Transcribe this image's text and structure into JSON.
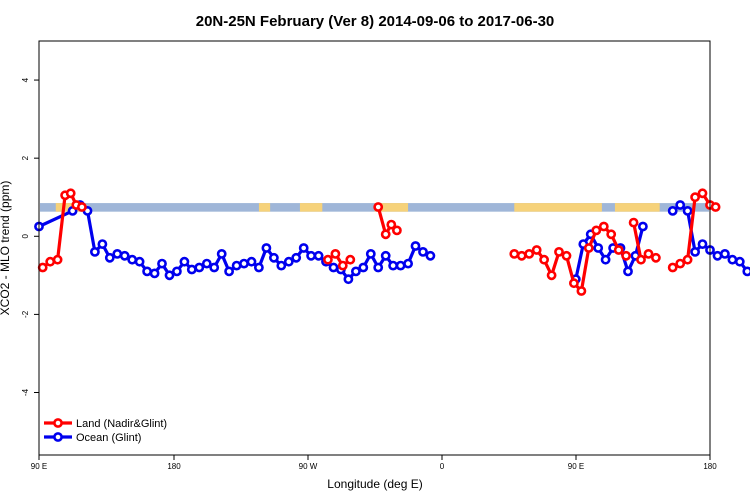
{
  "chart_data": {
    "type": "line",
    "title": "20N-25N February (Ver 8)   2014-09-06 to 2017-06-30",
    "xlabel": "Longitude (deg E)",
    "ylabel": "XCO2 - MLO trend (ppm)",
    "xlim": [
      90,
      450
    ],
    "ylim": [
      -5.6,
      5.0
    ],
    "x_ticks": [
      {
        "value": 90,
        "label": "90 E"
      },
      {
        "value": 180,
        "label": "180"
      },
      {
        "value": 270,
        "label": "90 W"
      },
      {
        "value": 360,
        "label": "0"
      },
      {
        "value": 450,
        "label": "90 E"
      },
      {
        "value": 540,
        "label": "180"
      }
    ],
    "y_ticks": [
      {
        "value": -4,
        "label": "-4"
      },
      {
        "value": -2,
        "label": "-2"
      },
      {
        "value": 0,
        "label": "0"
      },
      {
        "value": 2,
        "label": "2"
      },
      {
        "value": 4,
        "label": "4"
      }
    ],
    "x_tick_positions_note": "",
    "mask_band": {
      "y_range": [
        0.63,
        0.85
      ],
      "ocean_color": "#9fb6d8",
      "land_color": "#f6d27a",
      "land_segments": [
        [
          99,
          112
        ],
        [
          208,
          214
        ],
        [
          230,
          242
        ],
        [
          270,
          288
        ],
        [
          345,
          392
        ],
        [
          399,
          423
        ]
      ]
    },
    "legend_position": "bottom-left",
    "series": [
      {
        "name": "Land (Nadir&Glint)",
        "color": "#ff0000",
        "segments": [
          [
            [
              92,
              -0.8
            ],
            [
              96,
              -0.65
            ],
            [
              100,
              -0.6
            ],
            [
              104,
              1.05
            ],
            [
              107,
              1.1
            ],
            [
              110,
              0.8
            ],
            [
              113,
              0.75
            ]
          ],
          [
            [
              245,
              -0.6
            ],
            [
              249,
              -0.45
            ],
            [
              253,
              -0.75
            ],
            [
              257,
              -0.6
            ]
          ],
          [
            [
              272,
              0.75
            ],
            [
              276,
              0.05
            ],
            [
              279,
              0.3
            ],
            [
              282,
              0.15
            ]
          ],
          [
            [
              345,
              -0.45
            ],
            [
              349,
              -0.5
            ],
            [
              353,
              -0.45
            ],
            [
              357,
              -0.35
            ],
            [
              361,
              -0.6
            ],
            [
              365,
              -1.0
            ],
            [
              369,
              -0.4
            ],
            [
              373,
              -0.5
            ],
            [
              377,
              -1.2
            ],
            [
              381,
              -1.4
            ],
            [
              385,
              -0.3
            ],
            [
              389,
              0.15
            ],
            [
              393,
              0.25
            ],
            [
              397,
              0.05
            ],
            [
              401,
              -0.35
            ],
            [
              405,
              -0.5
            ]
          ],
          [
            [
              409,
              0.35
            ],
            [
              413,
              -0.6
            ],
            [
              417,
              -0.45
            ],
            [
              421,
              -0.55
            ]
          ],
          [
            [
              430,
              -0.8
            ],
            [
              434,
              -0.7
            ],
            [
              438,
              -0.6
            ],
            [
              442,
              1.0
            ],
            [
              446,
              1.1
            ],
            [
              450,
              0.8
            ],
            [
              453,
              0.75
            ]
          ]
        ]
      },
      {
        "name": "Ocean (Glint)",
        "color": "#0000ee",
        "segments": [
          [
            [
              90,
              0.25
            ],
            [
              108,
              0.65
            ],
            [
              112,
              0.8
            ],
            [
              116,
              0.65
            ],
            [
              120,
              -0.4
            ],
            [
              124,
              -0.2
            ],
            [
              128,
              -0.55
            ],
            [
              132,
              -0.45
            ],
            [
              136,
              -0.5
            ],
            [
              140,
              -0.6
            ],
            [
              144,
              -0.65
            ],
            [
              148,
              -0.9
            ],
            [
              152,
              -0.95
            ],
            [
              156,
              -0.7
            ],
            [
              160,
              -1.0
            ],
            [
              164,
              -0.9
            ],
            [
              168,
              -0.65
            ],
            [
              172,
              -0.85
            ],
            [
              176,
              -0.8
            ],
            [
              180,
              -0.7
            ],
            [
              184,
              -0.8
            ],
            [
              188,
              -0.45
            ],
            [
              192,
              -0.9
            ],
            [
              196,
              -0.75
            ],
            [
              200,
              -0.7
            ],
            [
              204,
              -0.65
            ],
            [
              208,
              -0.8
            ],
            [
              212,
              -0.3
            ],
            [
              216,
              -0.55
            ],
            [
              220,
              -0.75
            ],
            [
              224,
              -0.65
            ],
            [
              228,
              -0.55
            ],
            [
              232,
              -0.3
            ],
            [
              236,
              -0.5
            ],
            [
              240,
              -0.5
            ],
            [
              244,
              -0.65
            ],
            [
              248,
              -0.8
            ],
            [
              252,
              -0.85
            ],
            [
              256,
              -1.1
            ],
            [
              260,
              -0.9
            ],
            [
              264,
              -0.8
            ],
            [
              268,
              -0.45
            ],
            [
              272,
              -0.8
            ],
            [
              276,
              -0.5
            ],
            [
              280,
              -0.75
            ],
            [
              284,
              -0.75
            ],
            [
              288,
              -0.7
            ],
            [
              292,
              -0.25
            ],
            [
              296,
              -0.4
            ],
            [
              300,
              -0.5
            ]
          ],
          [
            [
              378,
              -1.1
            ],
            [
              382,
              -0.2
            ],
            [
              386,
              0.05
            ],
            [
              390,
              -0.3
            ],
            [
              394,
              -0.6
            ],
            [
              398,
              -0.3
            ],
            [
              402,
              -0.3
            ],
            [
              406,
              -0.9
            ],
            [
              410,
              -0.5
            ],
            [
              414,
              0.25
            ]
          ],
          [
            [
              430,
              0.65
            ],
            [
              434,
              0.8
            ],
            [
              438,
              0.65
            ],
            [
              442,
              -0.4
            ],
            [
              446,
              -0.2
            ],
            [
              450,
              -0.35
            ],
            [
              454,
              -0.5
            ],
            [
              458,
              -0.45
            ],
            [
              462,
              -0.6
            ],
            [
              466,
              -0.65
            ],
            [
              470,
              -0.9
            ],
            [
              474,
              -0.95
            ],
            [
              478,
              -0.7
            ],
            [
              482,
              -0.95
            ],
            [
              486,
              -0.9
            ]
          ]
        ]
      }
    ]
  }
}
